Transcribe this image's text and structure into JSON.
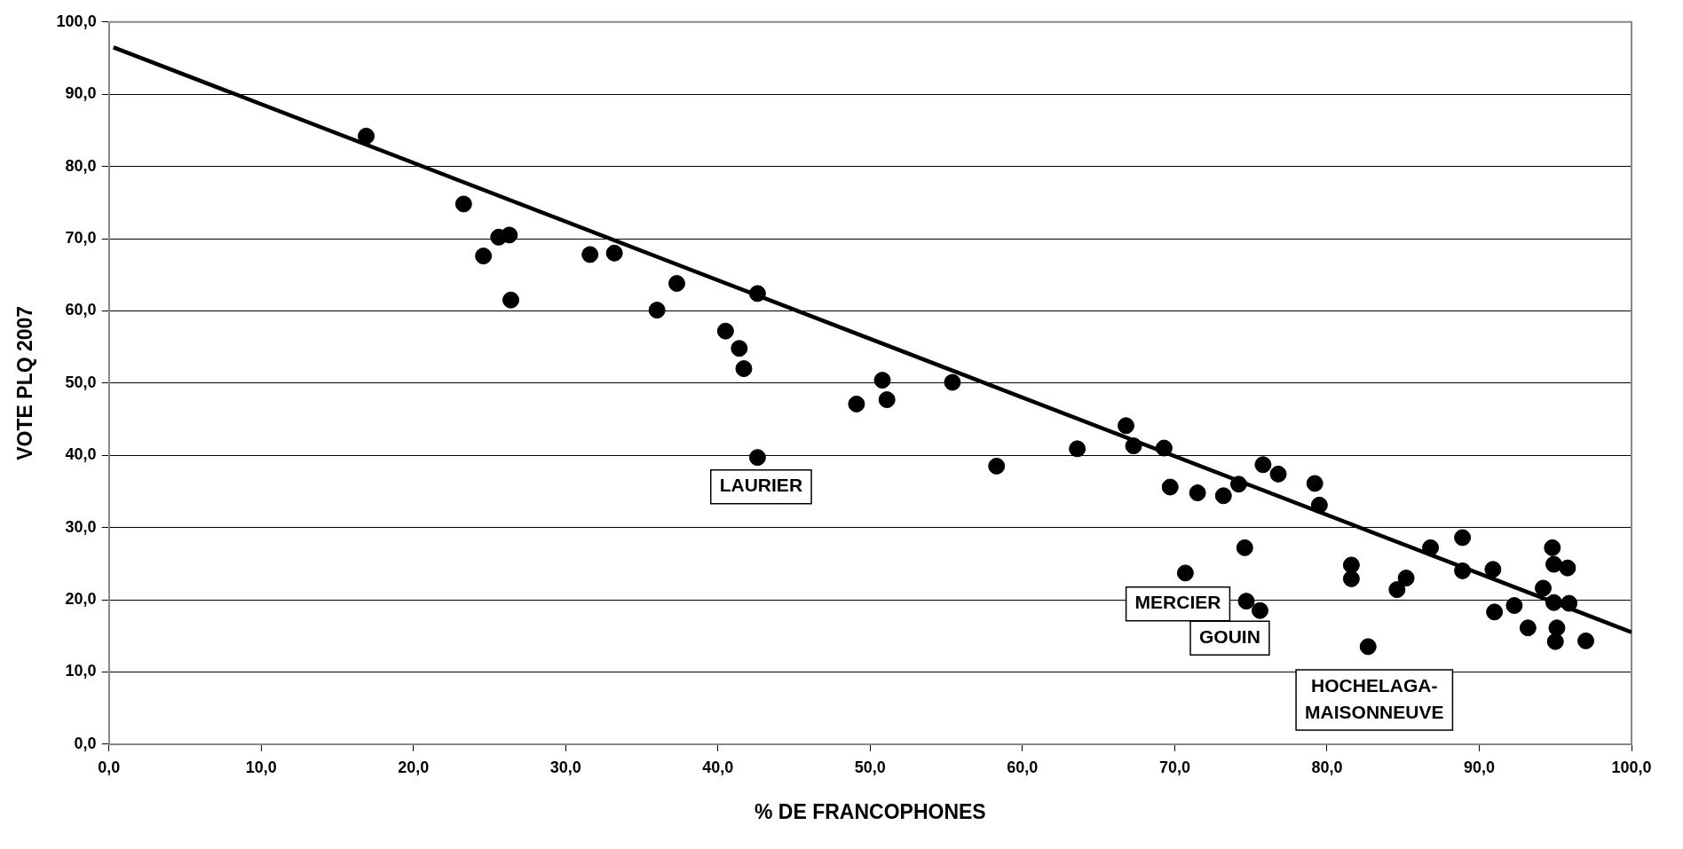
{
  "chart_data": {
    "type": "scatter",
    "xlabel": "% DE FRANCOPHONES",
    "ylabel": "VOTE PLQ 2007",
    "xlim": [
      0,
      100
    ],
    "ylim": [
      0,
      100
    ],
    "xticks": [
      {
        "value": 0,
        "label": "0,0"
      },
      {
        "value": 10,
        "label": "10,0"
      },
      {
        "value": 20,
        "label": "20,0"
      },
      {
        "value": 30,
        "label": "30,0"
      },
      {
        "value": 40,
        "label": "40,0"
      },
      {
        "value": 50,
        "label": "50,0"
      },
      {
        "value": 60,
        "label": "60,0"
      },
      {
        "value": 70,
        "label": "70,0"
      },
      {
        "value": 80,
        "label": "80,0"
      },
      {
        "value": 90,
        "label": "90,0"
      },
      {
        "value": 100,
        "label": "100,0"
      }
    ],
    "yticks": [
      {
        "value": 0,
        "label": "0,0"
      },
      {
        "value": 10,
        "label": "10,0"
      },
      {
        "value": 20,
        "label": "20,0"
      },
      {
        "value": 30,
        "label": "30,0"
      },
      {
        "value": 40,
        "label": "40,0"
      },
      {
        "value": 50,
        "label": "50,0"
      },
      {
        "value": 60,
        "label": "60,0"
      },
      {
        "value": 70,
        "label": "70,0"
      },
      {
        "value": 80,
        "label": "80,0"
      },
      {
        "value": 90,
        "label": "90,0"
      },
      {
        "value": 100,
        "label": "100,0"
      }
    ],
    "grid": "y",
    "legend": false,
    "marker": "circle",
    "series": [
      {
        "type": "scatter",
        "color": "#000000",
        "x": [
          16.9,
          23.3,
          24.6,
          25.6,
          26.3,
          26.4,
          31.6,
          33.2,
          37.3,
          36.0,
          40.5,
          41.4,
          41.7,
          42.6,
          42.6,
          49.1,
          50.8,
          51.1,
          55.4,
          58.3,
          63.6,
          66.8,
          67.3,
          69.3,
          69.7,
          70.7,
          71.5,
          73.2,
          74.2,
          74.6,
          74.7,
          75.6,
          75.8,
          76.8,
          79.2,
          79.5,
          81.6,
          81.6,
          82.7,
          84.6,
          85.2,
          86.8,
          88.9,
          88.9,
          90.9,
          91.0,
          92.3,
          93.2,
          94.2,
          94.8,
          94.9,
          95.8,
          94.9,
          95.9,
          95.1,
          95.0,
          97.0
        ],
        "values": [
          84.2,
          74.8,
          67.6,
          70.2,
          70.5,
          61.5,
          67.8,
          68.0,
          63.8,
          60.1,
          57.2,
          54.8,
          52.0,
          62.4,
          39.7,
          47.1,
          50.4,
          47.7,
          50.1,
          38.5,
          40.9,
          44.1,
          41.3,
          41.0,
          35.6,
          23.7,
          34.8,
          34.4,
          36.0,
          27.2,
          19.8,
          18.5,
          38.7,
          37.4,
          36.1,
          33.1,
          24.8,
          22.9,
          13.5,
          21.4,
          23.0,
          27.2,
          28.6,
          24.0,
          24.2,
          18.3,
          19.2,
          16.1,
          21.6,
          27.2,
          24.9,
          24.4,
          19.6,
          19.5,
          16.1,
          14.2,
          14.3
        ]
      },
      {
        "type": "line",
        "color": "#000000",
        "marker": "none",
        "x": [
          0.3,
          100
        ],
        "values": [
          96.5,
          15.5
        ]
      }
    ],
    "annotations": [
      {
        "text": "LAURIER",
        "x": 42.6,
        "y": 39.7
      },
      {
        "text": "MERCIER",
        "x": 74.7,
        "y": 19.8
      },
      {
        "text": "GOUIN",
        "x": 75.6,
        "y": 18.5
      },
      {
        "text": "HOCHELAGA-\nMAISONNEUVE",
        "x": 82.7,
        "y": 13.5
      }
    ]
  }
}
